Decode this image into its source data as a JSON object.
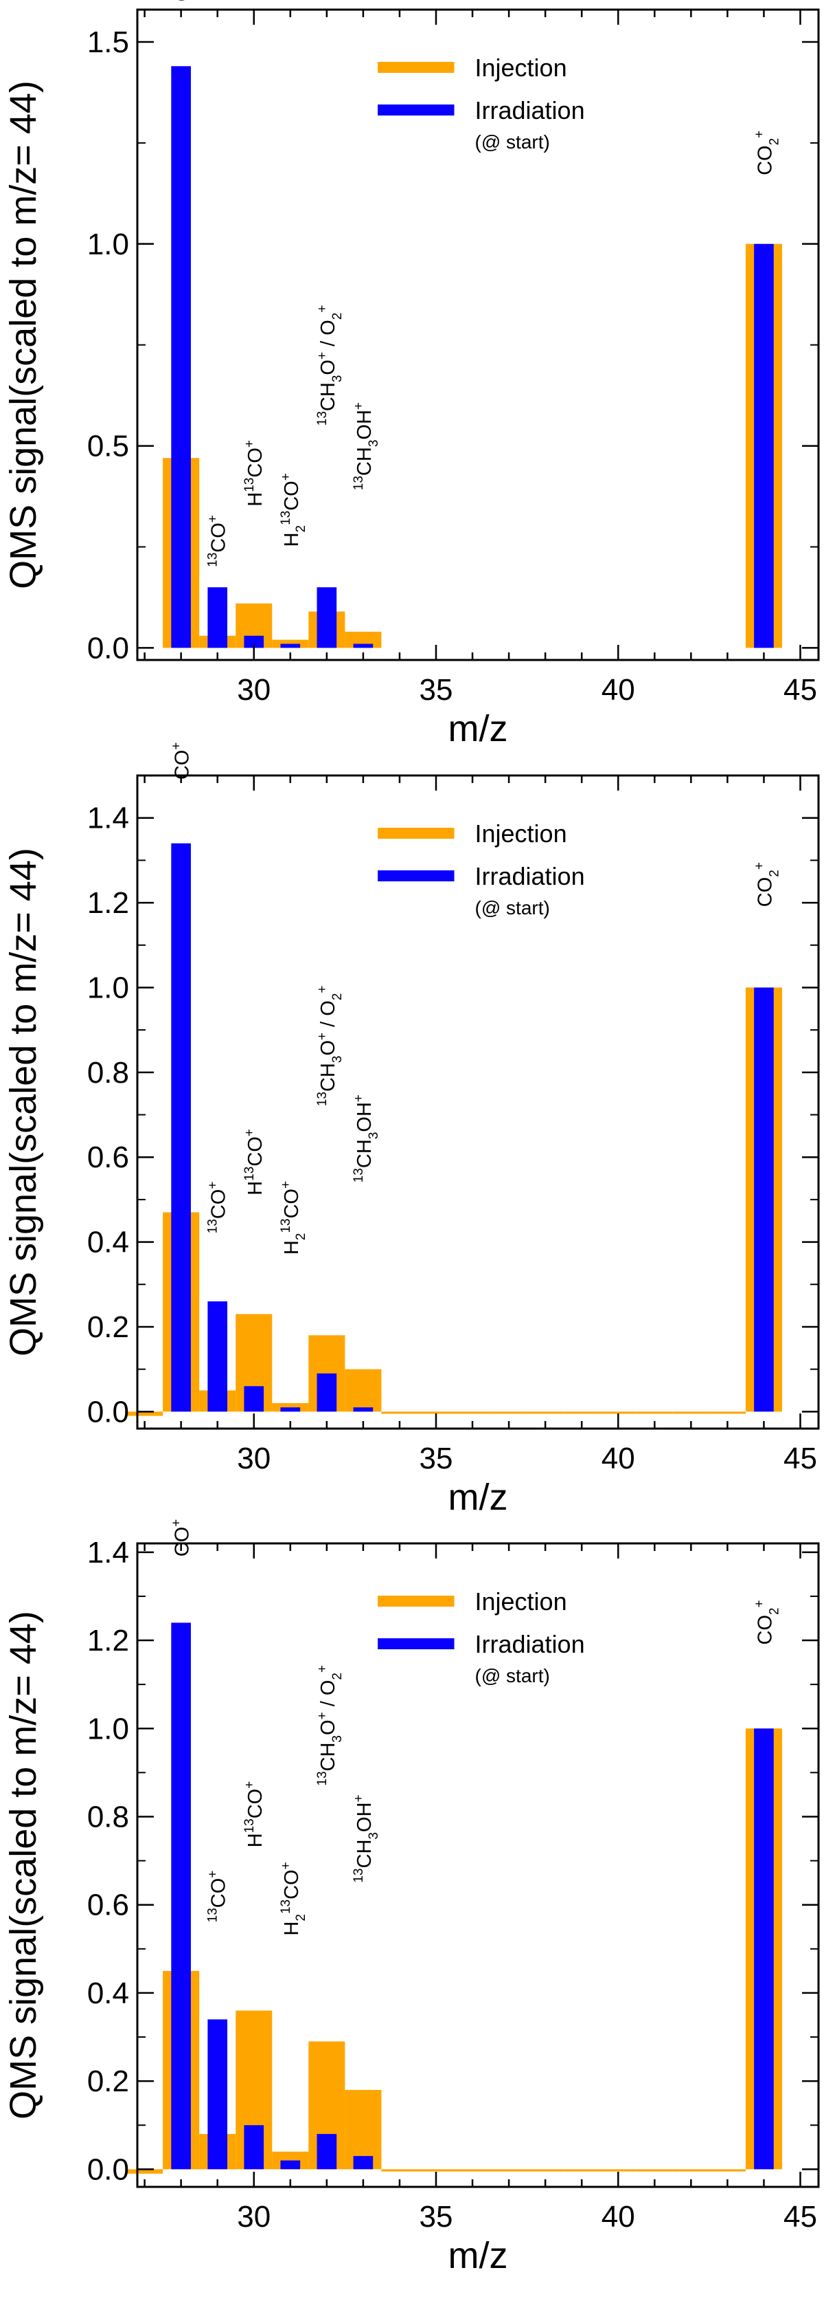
{
  "colors": {
    "injection": "#FFA500",
    "irradiation": "#0A00FF",
    "axis": "#000000"
  },
  "chart_data": [
    {
      "type": "bar",
      "xlabel": "m/z",
      "ylabel": "QMS signal(scaled to m/z= 44)",
      "xlim": [
        26.8,
        45.5
      ],
      "ylim": [
        -0.03,
        1.58
      ],
      "xticks": [
        30,
        35,
        40,
        45
      ],
      "xtick_labels": [
        "30",
        "35",
        "40",
        "45"
      ],
      "yticks": [
        0.0,
        0.5,
        1.0,
        1.5
      ],
      "ytick_labels": [
        "0.0",
        "0.5",
        "1.0",
        "1.5"
      ],
      "legend": {
        "position": "top-center",
        "entries": [
          "Injection",
          "Irradiation"
        ],
        "note": "(@ start)"
      },
      "series": [
        {
          "name": "Injection",
          "x": [
            28,
            29,
            30,
            31,
            32,
            33,
            44
          ],
          "values": [
            0.47,
            0.03,
            0.11,
            0.02,
            0.09,
            0.04,
            1.0
          ]
        },
        {
          "name": "Irradiation",
          "x": [
            28,
            29,
            30,
            31,
            32,
            33,
            44
          ],
          "values": [
            1.44,
            0.15,
            0.03,
            0.01,
            0.15,
            0.01,
            1.0
          ]
        }
      ],
      "annotations": [
        {
          "m": 28,
          "y": 1.6,
          "base": "CO",
          "sup": "+"
        },
        {
          "m": 29,
          "y": 0.2,
          "pre": "13",
          "base": "CO",
          "sup": "+"
        },
        {
          "m": 30,
          "y": 0.35,
          "base": "H",
          "pre2": "13",
          "base2": "CO",
          "sup": "+"
        },
        {
          "m": 31,
          "y": 0.25,
          "base": "H",
          "sub": "2",
          "pre2": "13",
          "base2": "CO",
          "sup": "+"
        },
        {
          "m": 32,
          "y": 0.55,
          "pre": "13",
          "base": "CH",
          "sub": "3",
          "base2": "O",
          "sup": "+",
          "tail": " / O",
          "tail_sub": "2",
          "tail_sup": "+"
        },
        {
          "m": 33,
          "y": 0.39,
          "pre": "13",
          "base": "CH",
          "sub": "3",
          "base2": "OH",
          "sup": "+"
        },
        {
          "m": 44,
          "y": 1.17,
          "base": "CO",
          "sub": "2",
          "sup": "+"
        }
      ]
    },
    {
      "type": "bar",
      "xlabel": "m/z",
      "ylabel": "QMS signal(scaled to m/z= 44)",
      "xlim": [
        26.8,
        45.5
      ],
      "ylim": [
        -0.04,
        1.5
      ],
      "xticks": [
        30,
        35,
        40,
        45
      ],
      "xtick_labels": [
        "30",
        "35",
        "40",
        "45"
      ],
      "yticks": [
        0.0,
        0.2,
        0.4,
        0.6,
        0.8,
        1.0,
        1.2,
        1.4
      ],
      "ytick_labels": [
        "0.0",
        "0.2",
        "0.4",
        "0.6",
        "0.8",
        "1.0",
        "1.2",
        "1.4"
      ],
      "legend": {
        "position": "top-center",
        "entries": [
          "Injection",
          "Irradiation"
        ],
        "note": "(@ start)"
      },
      "series": [
        {
          "name": "Injection",
          "x": [
            27,
            28,
            29,
            30,
            31,
            32,
            33,
            34,
            35,
            36,
            37,
            38,
            39,
            40,
            41,
            42,
            43,
            44
          ],
          "values": [
            -0.01,
            0.47,
            0.05,
            0.23,
            0.02,
            0.18,
            0.1,
            -0.005,
            -0.005,
            -0.005,
            -0.005,
            -0.005,
            -0.005,
            -0.005,
            -0.005,
            -0.005,
            -0.005,
            1.0
          ]
        },
        {
          "name": "Irradiation",
          "x": [
            28,
            29,
            30,
            31,
            32,
            33,
            44
          ],
          "values": [
            1.34,
            0.26,
            0.06,
            0.01,
            0.09,
            0.01,
            1.0
          ]
        }
      ],
      "annotations": [
        {
          "m": 28,
          "y": 1.49,
          "base": "CO",
          "sup": "+"
        },
        {
          "m": 29,
          "y": 0.42,
          "pre": "13",
          "base": "CO",
          "sup": "+"
        },
        {
          "m": 30,
          "y": 0.51,
          "base": "H",
          "pre2": "13",
          "base2": "CO",
          "sup": "+"
        },
        {
          "m": 31,
          "y": 0.37,
          "base": "H",
          "sub": "2",
          "pre2": "13",
          "base2": "CO",
          "sup": "+"
        },
        {
          "m": 32,
          "y": 0.72,
          "pre": "13",
          "base": "CH",
          "sub": "3",
          "base2": "O",
          "sup": "+",
          "tail": " / O",
          "tail_sub": "2",
          "tail_sup": "+"
        },
        {
          "m": 33,
          "y": 0.54,
          "pre": "13",
          "base": "CH",
          "sub": "3",
          "base2": "OH",
          "sup": "+"
        },
        {
          "m": 44,
          "y": 1.19,
          "base": "CO",
          "sub": "2",
          "sup": "+"
        }
      ]
    },
    {
      "type": "bar",
      "xlabel": "m/z",
      "ylabel": "QMS signal(scaled to m/z= 44)",
      "xlim": [
        26.8,
        45.5
      ],
      "ylim": [
        -0.04,
        1.42
      ],
      "xticks": [
        30,
        35,
        40,
        45
      ],
      "xtick_labels": [
        "30",
        "35",
        "40",
        "45"
      ],
      "yticks": [
        0.0,
        0.2,
        0.4,
        0.6,
        0.8,
        1.0,
        1.2,
        1.4
      ],
      "ytick_labels": [
        "0.0",
        "0.2",
        "0.4",
        "0.6",
        "0.8",
        "1.0",
        "1.2",
        "1.4"
      ],
      "legend": {
        "position": "top-center",
        "entries": [
          "Injection",
          "Irradiation"
        ],
        "note": "(@ start)"
      },
      "series": [
        {
          "name": "Injection",
          "x": [
            27,
            28,
            29,
            30,
            31,
            32,
            33,
            34,
            35,
            36,
            37,
            38,
            39,
            40,
            41,
            42,
            43,
            44
          ],
          "values": [
            -0.01,
            0.45,
            0.08,
            0.36,
            0.04,
            0.29,
            0.18,
            -0.005,
            -0.005,
            -0.005,
            -0.005,
            -0.005,
            -0.005,
            -0.005,
            -0.005,
            -0.005,
            -0.005,
            1.0
          ]
        },
        {
          "name": "Irradiation",
          "x": [
            28,
            29,
            30,
            31,
            32,
            33,
            44
          ],
          "values": [
            1.24,
            0.34,
            0.1,
            0.02,
            0.08,
            0.03,
            1.0
          ]
        }
      ],
      "annotations": [
        {
          "m": 28,
          "y": 1.39,
          "base": "CO",
          "sup": "+"
        },
        {
          "m": 29,
          "y": 0.56,
          "pre": "13",
          "base": "CO",
          "sup": "+"
        },
        {
          "m": 30,
          "y": 0.73,
          "base": "H",
          "pre2": "13",
          "base2": "CO",
          "sup": "+"
        },
        {
          "m": 31,
          "y": 0.53,
          "base": "H",
          "sub": "2",
          "pre2": "13",
          "base2": "CO",
          "sup": "+"
        },
        {
          "m": 32,
          "y": 0.87,
          "pre": "13",
          "base": "CH",
          "sub": "3",
          "base2": "O",
          "sup": "+",
          "tail": " / O",
          "tail_sub": "2",
          "tail_sup": "+"
        },
        {
          "m": 33,
          "y": 0.65,
          "pre": "13",
          "base": "CH",
          "sub": "3",
          "base2": "OH",
          "sup": "+"
        },
        {
          "m": 44,
          "y": 1.19,
          "base": "CO",
          "sub": "2",
          "sup": "+"
        }
      ]
    }
  ]
}
